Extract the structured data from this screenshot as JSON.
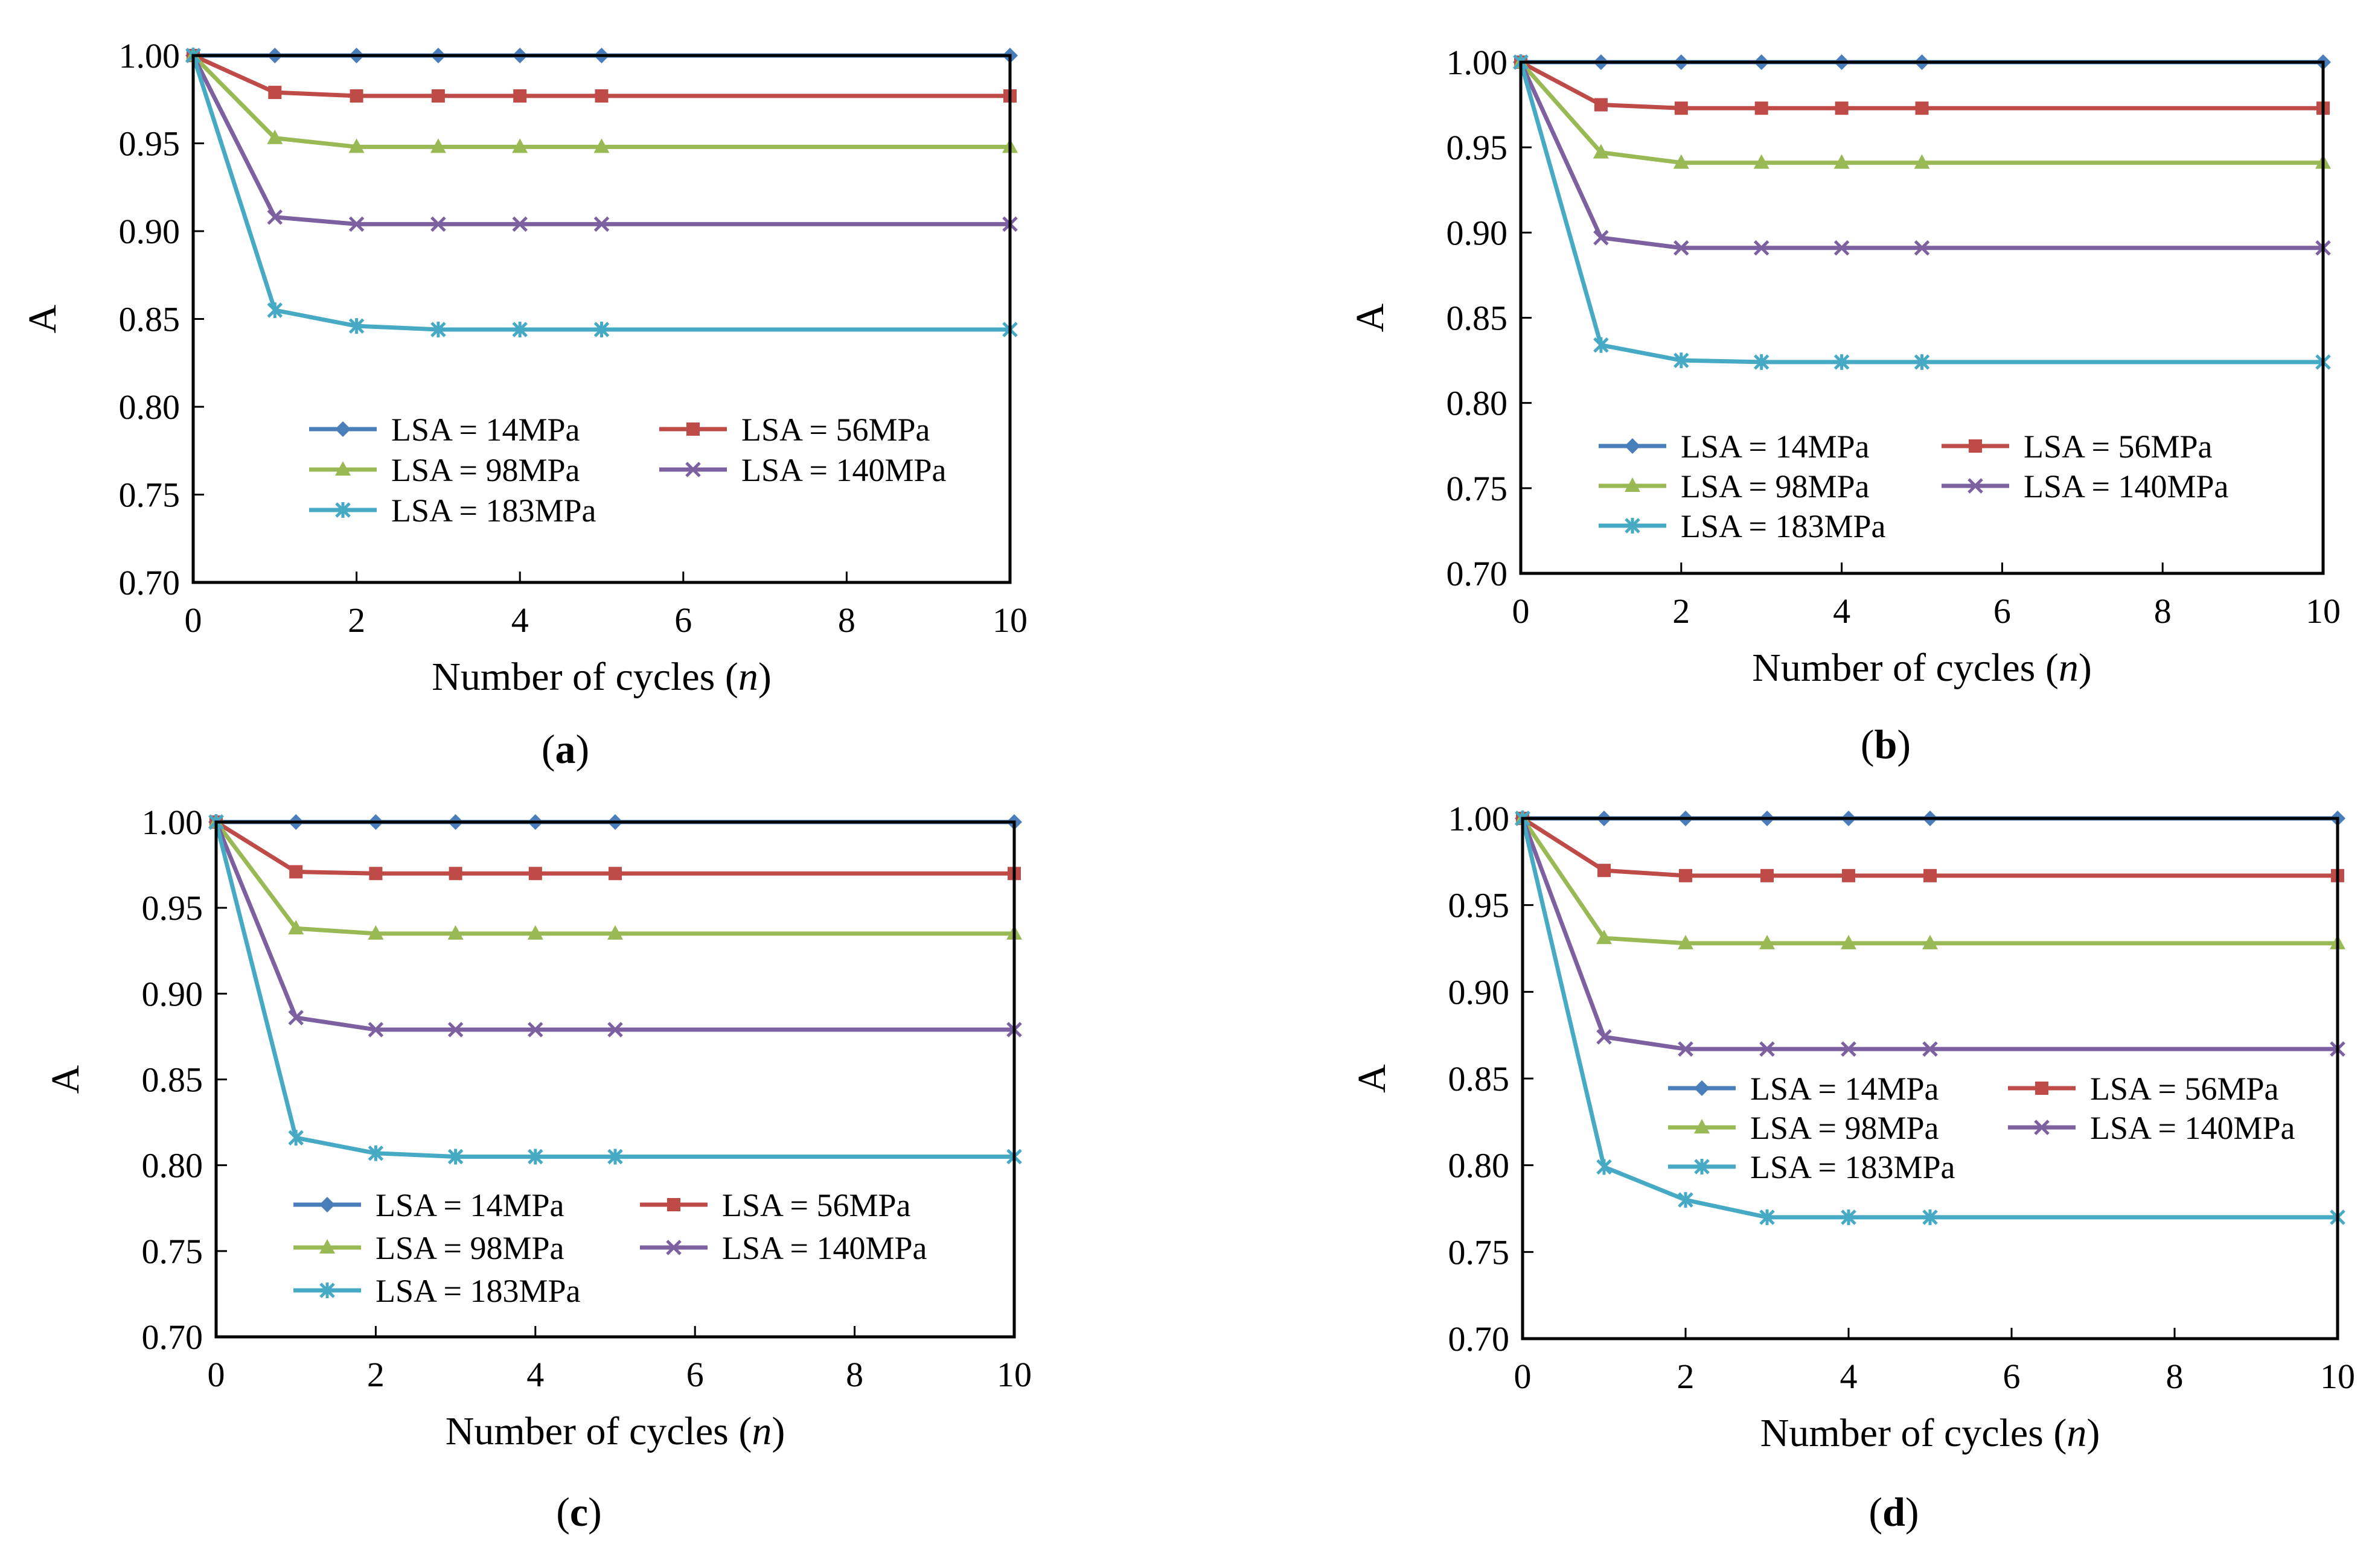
{
  "figure": {
    "subpanel_labels": [
      "a",
      "b",
      "c",
      "d"
    ]
  },
  "series_styles": [
    {
      "name": "LSA = 14MPa",
      "color": "#4a7ebb",
      "marker": "diamond"
    },
    {
      "name": "LSA = 56MPa",
      "color": "#be4b48",
      "marker": "square"
    },
    {
      "name": "LSA = 98MPa",
      "color": "#98b954",
      "marker": "triangle"
    },
    {
      "name": "LSA = 140MPa",
      "color": "#7d60a0",
      "marker": "x"
    },
    {
      "name": "LSA = 183MPa",
      "color": "#46aac5",
      "marker": "star"
    }
  ],
  "chart_data": [
    {
      "panel": "a",
      "type": "line",
      "title": "",
      "xlabel": "Number of cycles",
      "xlabel_var": "n",
      "ylabel": "A",
      "xlim": [
        0,
        10
      ],
      "ylim": [
        0.7,
        1.0
      ],
      "xticks": [
        "0",
        "2",
        "4",
        "6",
        "8",
        "10"
      ],
      "yticks": [
        "0.70",
        "0.75",
        "0.80",
        "0.85",
        "0.90",
        "0.95",
        "1.00"
      ],
      "x": [
        0,
        1,
        2,
        3,
        4,
        5,
        10
      ],
      "legend_position": "lower-center",
      "series": [
        {
          "name": "LSA = 14MPa",
          "values": [
            1.0,
            1.0,
            1.0,
            1.0,
            1.0,
            1.0,
            1.0
          ]
        },
        {
          "name": "LSA = 56MPa",
          "values": [
            1.0,
            0.979,
            0.977,
            0.977,
            0.977,
            0.977,
            0.977
          ]
        },
        {
          "name": "LSA = 98MPa",
          "values": [
            1.0,
            0.953,
            0.948,
            0.948,
            0.948,
            0.948,
            0.948
          ]
        },
        {
          "name": "LSA = 140MPa",
          "values": [
            1.0,
            0.908,
            0.904,
            0.904,
            0.904,
            0.904,
            0.904
          ]
        },
        {
          "name": "LSA = 183MPa",
          "values": [
            1.0,
            0.855,
            0.846,
            0.844,
            0.844,
            0.844,
            0.844
          ]
        }
      ]
    },
    {
      "panel": "b",
      "type": "line",
      "title": "",
      "xlabel": "Number of cycles",
      "xlabel_var": "n",
      "ylabel": "A",
      "xlim": [
        0,
        10
      ],
      "ylim": [
        0.7,
        1.0
      ],
      "xticks": [
        "0",
        "2",
        "4",
        "6",
        "8",
        "10"
      ],
      "yticks": [
        "0.70",
        "0.75",
        "0.80",
        "0.85",
        "0.90",
        "0.95",
        "1.00"
      ],
      "x": [
        0,
        1,
        2,
        3,
        4,
        5,
        10
      ],
      "legend_position": "lower-center",
      "series": [
        {
          "name": "LSA = 14MPa",
          "values": [
            1.0,
            1.0,
            1.0,
            1.0,
            1.0,
            1.0,
            1.0
          ]
        },
        {
          "name": "LSA = 56MPa",
          "values": [
            1.0,
            0.975,
            0.973,
            0.973,
            0.973,
            0.973,
            0.973
          ]
        },
        {
          "name": "LSA = 98MPa",
          "values": [
            1.0,
            0.947,
            0.941,
            0.941,
            0.941,
            0.941,
            0.941
          ]
        },
        {
          "name": "LSA = 140MPa",
          "values": [
            1.0,
            0.897,
            0.891,
            0.891,
            0.891,
            0.891,
            0.891
          ]
        },
        {
          "name": "LSA = 183MPa",
          "values": [
            1.0,
            0.834,
            0.825,
            0.824,
            0.824,
            0.824,
            0.824
          ]
        }
      ]
    },
    {
      "panel": "c",
      "type": "line",
      "title": "",
      "xlabel": "Number of cycles",
      "xlabel_var": "n",
      "ylabel": "A",
      "xlim": [
        0,
        10
      ],
      "ylim": [
        0.7,
        1.0
      ],
      "xticks": [
        "0",
        "2",
        "4",
        "6",
        "8",
        "10"
      ],
      "yticks": [
        "0.70",
        "0.75",
        "0.80",
        "0.85",
        "0.90",
        "0.95",
        "1.00"
      ],
      "x": [
        0,
        1,
        2,
        3,
        4,
        5,
        10
      ],
      "legend_position": "lower-center",
      "series": [
        {
          "name": "LSA = 14MPa",
          "values": [
            1.0,
            1.0,
            1.0,
            1.0,
            1.0,
            1.0,
            1.0
          ]
        },
        {
          "name": "LSA = 56MPa",
          "values": [
            1.0,
            0.971,
            0.97,
            0.97,
            0.97,
            0.97,
            0.97
          ]
        },
        {
          "name": "LSA = 98MPa",
          "values": [
            1.0,
            0.938,
            0.935,
            0.935,
            0.935,
            0.935,
            0.935
          ]
        },
        {
          "name": "LSA = 140MPa",
          "values": [
            1.0,
            0.886,
            0.879,
            0.879,
            0.879,
            0.879,
            0.879
          ]
        },
        {
          "name": "LSA = 183MPa",
          "values": [
            1.0,
            0.816,
            0.807,
            0.805,
            0.805,
            0.805,
            0.805
          ]
        }
      ]
    },
    {
      "panel": "d",
      "type": "line",
      "title": "",
      "xlabel": "Number of cycles",
      "xlabel_var": "n",
      "ylabel": "A",
      "xlim": [
        0,
        10
      ],
      "ylim": [
        0.7,
        1.0
      ],
      "xticks": [
        "0",
        "2",
        "4",
        "6",
        "8",
        "10"
      ],
      "yticks": [
        "0.70",
        "0.75",
        "0.80",
        "0.85",
        "0.90",
        "0.95",
        "1.00"
      ],
      "x": [
        0,
        1,
        2,
        3,
        4,
        5,
        10
      ],
      "legend_position": "center-right",
      "series": [
        {
          "name": "LSA = 14MPa",
          "values": [
            1.0,
            1.0,
            1.0,
            1.0,
            1.0,
            1.0,
            1.0
          ]
        },
        {
          "name": "LSA = 56MPa",
          "values": [
            1.0,
            0.97,
            0.967,
            0.967,
            0.967,
            0.967,
            0.967
          ]
        },
        {
          "name": "LSA = 98MPa",
          "values": [
            1.0,
            0.931,
            0.928,
            0.928,
            0.928,
            0.928,
            0.928
          ]
        },
        {
          "name": "LSA = 140MPa",
          "values": [
            1.0,
            0.874,
            0.867,
            0.867,
            0.867,
            0.867,
            0.867
          ]
        },
        {
          "name": "LSA = 183MPa",
          "values": [
            1.0,
            0.799,
            0.78,
            0.77,
            0.77,
            0.77,
            0.77
          ]
        }
      ]
    }
  ]
}
